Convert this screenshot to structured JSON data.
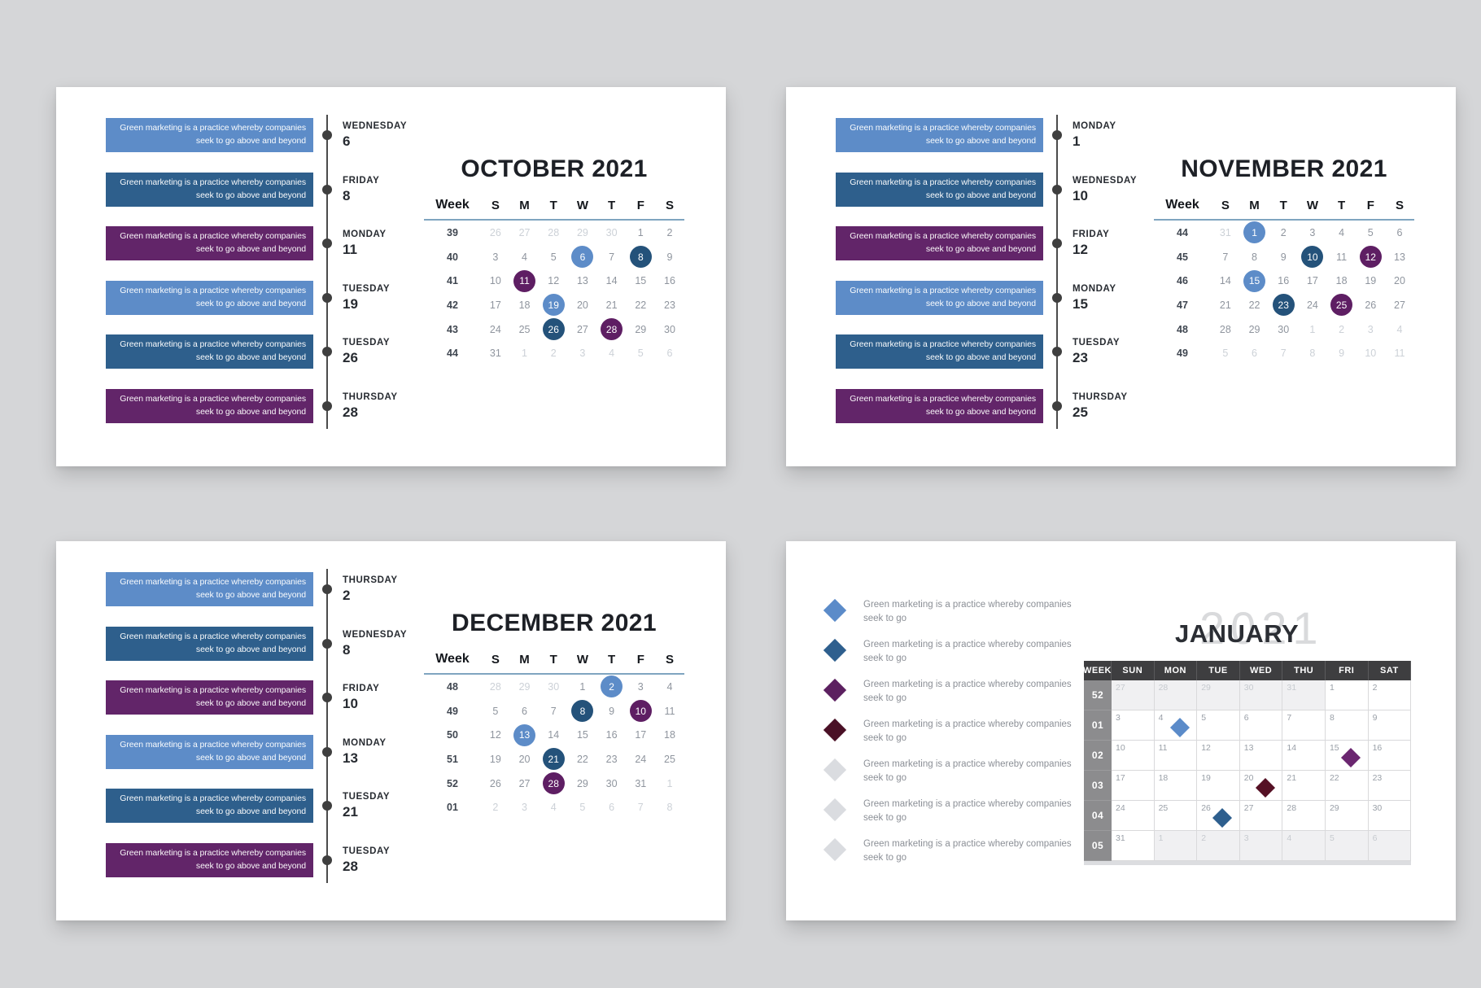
{
  "background": "#d5d6d8",
  "colors": {
    "bar": {
      "lb": "#5d8cc8",
      "db": "#2e5f8c",
      "p": "#622569"
    },
    "circle": {
      "lb": "#5d8cc8",
      "db": "#24527a",
      "p": "#5e1e63"
    },
    "jan_marker": {
      "lb": "#5b8bc9",
      "db": "#2e5f8e",
      "p": "#6b2670",
      "mr": "#551024"
    },
    "header_underline": "#7fa5c0",
    "timeline": "#4b4b4b"
  },
  "event_bar_text": {
    "line1": "Green marketing is a practice whereby companies",
    "line2": "seek to go above and beyond"
  },
  "month_slides": [
    {
      "id": "october",
      "title": "OCTOBER 2021",
      "week_label": "Week",
      "day_headers": [
        "S",
        "M",
        "T",
        "W",
        "T",
        "F",
        "S"
      ],
      "events": [
        {
          "color": "lb",
          "day": "WEDNESDAY",
          "num": "6"
        },
        {
          "color": "db",
          "day": "FRIDAY",
          "num": "8"
        },
        {
          "color": "p",
          "day": "MONDAY",
          "num": "11"
        },
        {
          "color": "lb",
          "day": "TUESDAY",
          "num": "19"
        },
        {
          "color": "db",
          "day": "TUESDAY",
          "num": "26"
        },
        {
          "color": "p",
          "day": "THURSDAY",
          "num": "28"
        }
      ],
      "weeks": [
        {
          "week": "39",
          "days": [
            "26f",
            "27f",
            "28f",
            "29f",
            "30f",
            "1",
            "2"
          ]
        },
        {
          "week": "40",
          "days": [
            "3",
            "4",
            "5",
            "6lb",
            "7",
            "8db",
            "9"
          ]
        },
        {
          "week": "41",
          "days": [
            "10",
            "11p",
            "12",
            "13",
            "14",
            "15",
            "16"
          ]
        },
        {
          "week": "42",
          "days": [
            "17",
            "18",
            "19lb",
            "20",
            "21",
            "22",
            "23"
          ]
        },
        {
          "week": "43",
          "days": [
            "24",
            "25",
            "26db",
            "27",
            "28p",
            "29",
            "30"
          ]
        },
        {
          "week": "44",
          "days": [
            "31",
            "1f",
            "2f",
            "3f",
            "4f",
            "5f",
            "6f"
          ]
        }
      ]
    },
    {
      "id": "november",
      "title": "NOVEMBER 2021",
      "week_label": "Week",
      "day_headers": [
        "S",
        "M",
        "T",
        "W",
        "T",
        "F",
        "S"
      ],
      "events": [
        {
          "color": "lb",
          "day": "MONDAY",
          "num": "1"
        },
        {
          "color": "db",
          "day": "WEDNESDAY",
          "num": "10"
        },
        {
          "color": "p",
          "day": "FRIDAY",
          "num": "12"
        },
        {
          "color": "lb",
          "day": "MONDAY",
          "num": "15"
        },
        {
          "color": "db",
          "day": "TUESDAY",
          "num": "23"
        },
        {
          "color": "p",
          "day": "THURSDAY",
          "num": "25"
        }
      ],
      "weeks": [
        {
          "week": "44",
          "days": [
            "31f",
            "1lb",
            "2",
            "3",
            "4",
            "5",
            "6"
          ]
        },
        {
          "week": "45",
          "days": [
            "7",
            "8",
            "9",
            "10db",
            "11",
            "12p",
            "13"
          ]
        },
        {
          "week": "46",
          "days": [
            "14",
            "15lb",
            "16",
            "17",
            "18",
            "19",
            "20"
          ]
        },
        {
          "week": "47",
          "days": [
            "21",
            "22",
            "23db",
            "24",
            "25p",
            "26",
            "27"
          ]
        },
        {
          "week": "48",
          "days": [
            "28",
            "29",
            "30",
            "1f",
            "2f",
            "3f",
            "4f"
          ]
        },
        {
          "week": "49",
          "days": [
            "5f",
            "6f",
            "7f",
            "8f",
            "9f",
            "10f",
            "11f"
          ]
        }
      ]
    },
    {
      "id": "december",
      "title": "DECEMBER 2021",
      "week_label": "Week",
      "day_headers": [
        "S",
        "M",
        "T",
        "W",
        "T",
        "F",
        "S"
      ],
      "events": [
        {
          "color": "lb",
          "day": "THURSDAY",
          "num": "2"
        },
        {
          "color": "db",
          "day": "WEDNESDAY",
          "num": "8"
        },
        {
          "color": "p",
          "day": "FRIDAY",
          "num": "10"
        },
        {
          "color": "lb",
          "day": "MONDAY",
          "num": "13"
        },
        {
          "color": "db",
          "day": "TUESDAY",
          "num": "21"
        },
        {
          "color": "p",
          "day": "TUESDAY",
          "num": "28"
        }
      ],
      "weeks": [
        {
          "week": "48",
          "days": [
            "28f",
            "29f",
            "30f",
            "1",
            "2lb",
            "3",
            "4"
          ]
        },
        {
          "week": "49",
          "days": [
            "5",
            "6",
            "7",
            "8db",
            "9",
            "10p",
            "11"
          ]
        },
        {
          "week": "50",
          "days": [
            "12",
            "13lb",
            "14",
            "15",
            "16",
            "17",
            "18"
          ]
        },
        {
          "week": "51",
          "days": [
            "19",
            "20",
            "21db",
            "22",
            "23",
            "24",
            "25"
          ]
        },
        {
          "week": "52",
          "days": [
            "26",
            "27",
            "28p",
            "29",
            "30",
            "31",
            "1f"
          ]
        },
        {
          "week": "01",
          "days": [
            "2f",
            "3f",
            "4f",
            "5f",
            "6f",
            "7f",
            "8f"
          ]
        }
      ]
    }
  ],
  "january": {
    "title": "JANUARY",
    "ghost_year": "2021",
    "legend_text": {
      "line1": "Green marketing is a practice whereby companies",
      "line2": "seek to go"
    },
    "legend_colors": [
      "#5b8bc9",
      "#2e5f8e",
      "#5c2060",
      "#4a1026",
      "#dadce0",
      "#dadce0",
      "#dadce0"
    ],
    "table": {
      "headers": [
        "WEEK",
        "SUN",
        "MON",
        "TUE",
        "WED",
        "THU",
        "FRI",
        "SAT"
      ],
      "weeks": [
        {
          "week": "52",
          "days": [
            "27o",
            "28o",
            "29o",
            "30o",
            "31o",
            "1",
            "2"
          ]
        },
        {
          "week": "01",
          "days": [
            "3",
            "4lb",
            "5",
            "6",
            "7",
            "8",
            "9"
          ]
        },
        {
          "week": "02",
          "days": [
            "10",
            "11",
            "12",
            "13",
            "14",
            "15p",
            "16"
          ]
        },
        {
          "week": "03",
          "days": [
            "17",
            "18",
            "19",
            "20mr",
            "21",
            "22",
            "23"
          ]
        },
        {
          "week": "04",
          "days": [
            "24",
            "25",
            "26db",
            "27",
            "28",
            "29",
            "30"
          ]
        },
        {
          "week": "05",
          "days": [
            "31",
            "1o",
            "2o",
            "3o",
            "4o",
            "5o",
            "6o"
          ]
        }
      ]
    }
  }
}
